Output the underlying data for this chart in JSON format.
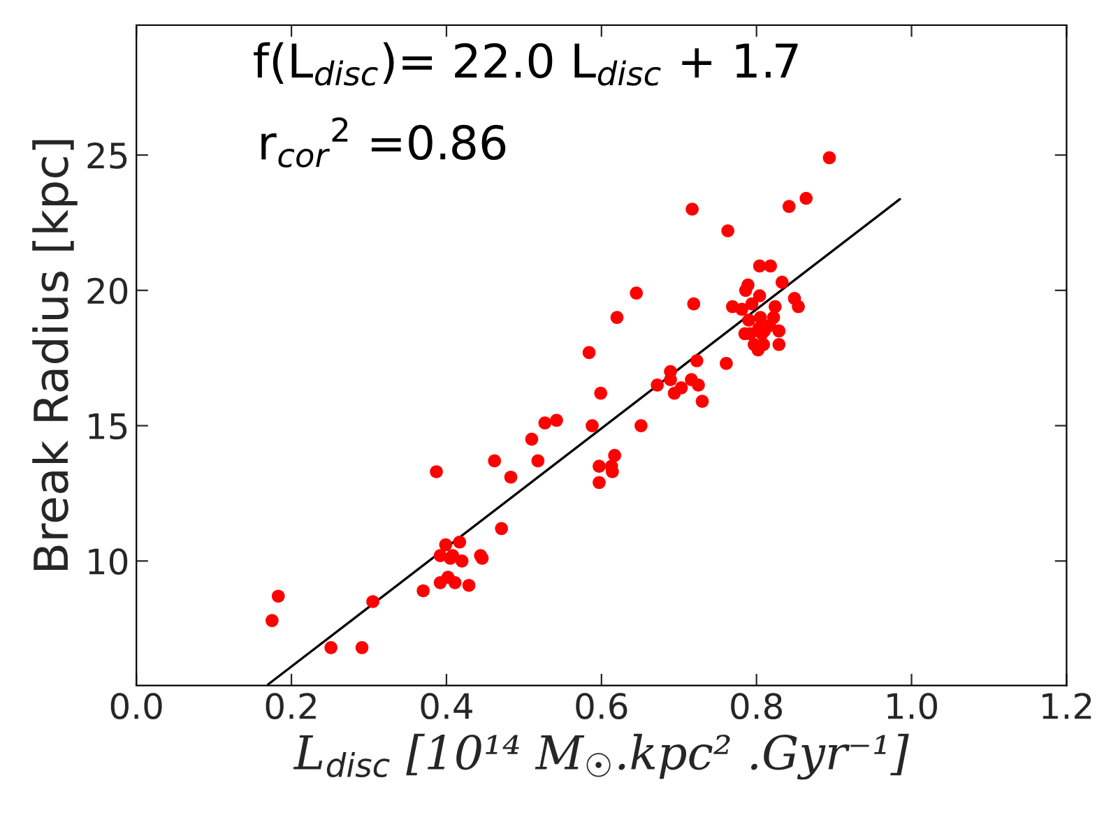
{
  "chart_data": {
    "type": "scatter",
    "xlabel": "L$_{disc}$ [10¹⁴ M$_{☉}$.kpc² .Gyr⁻¹]",
    "ylabel": "Break Radius [kpc]",
    "annotations": [
      "f(L$_{disc}$)= 22.0 L$_{disc}$ + 1.7",
      "r$_{cor}$$^{2}$ =0.86"
    ],
    "xlim": [
      0,
      1.2
    ],
    "ylim": [
      5.4,
      29.8
    ],
    "xticks": [
      {
        "value": 0,
        "label": "0.0"
      },
      {
        "value": 0.2,
        "label": "0.2"
      },
      {
        "value": 0.4,
        "label": "0.4"
      },
      {
        "value": 0.6,
        "label": "0.6"
      },
      {
        "value": 0.8,
        "label": "0.8"
      },
      {
        "value": 1.0,
        "label": "1.0"
      },
      {
        "value": 1.2,
        "label": "1.2"
      }
    ],
    "yticks": [
      10,
      15,
      20,
      25
    ],
    "grid": false,
    "legend": false,
    "marker": "circle",
    "series": [
      {
        "color": "#ff0000",
        "x": [
          0.175,
          0.183,
          0.251,
          0.291,
          0.305,
          0.387,
          0.37,
          0.392,
          0.402,
          0.411,
          0.429,
          0.392,
          0.399,
          0.405,
          0.408,
          0.417,
          0.42,
          0.444,
          0.446,
          0.471,
          0.462,
          0.483,
          0.518,
          0.51,
          0.527,
          0.542,
          0.645,
          0.62,
          0.584,
          0.719,
          0.599,
          0.588,
          0.651,
          0.597,
          0.613,
          0.614,
          0.617,
          0.597,
          0.672,
          0.689,
          0.689,
          0.703,
          0.694,
          0.716,
          0.725,
          0.723,
          0.73,
          0.761,
          0.804,
          0.818,
          0.786,
          0.789,
          0.833,
          0.804,
          0.769,
          0.781,
          0.794,
          0.824,
          0.849,
          0.854,
          0.79,
          0.805,
          0.822,
          0.785,
          0.792,
          0.803,
          0.81,
          0.817,
          0.807,
          0.829,
          0.829,
          0.797,
          0.809,
          0.802,
          0.717,
          0.763,
          0.842,
          0.864,
          0.894
        ],
        "values": [
          7.8,
          8.7,
          6.8,
          6.8,
          8.5,
          13.3,
          8.9,
          9.2,
          9.4,
          9.2,
          9.1,
          10.2,
          10.6,
          10.1,
          10.2,
          10.7,
          10.0,
          10.2,
          10.1,
          11.2,
          13.7,
          13.1,
          13.7,
          14.5,
          15.1,
          15.2,
          19.9,
          19.0,
          17.7,
          19.5,
          16.2,
          15.0,
          15.0,
          13.5,
          13.5,
          13.3,
          13.9,
          12.9,
          16.5,
          17.0,
          16.7,
          16.4,
          16.2,
          16.7,
          16.5,
          17.4,
          15.9,
          17.3,
          20.9,
          20.9,
          20.0,
          20.2,
          20.3,
          19.8,
          19.4,
          19.3,
          19.5,
          19.4,
          19.7,
          19.4,
          18.9,
          19.0,
          19.0,
          18.4,
          18.4,
          18.6,
          18.5,
          18.7,
          18.4,
          18.5,
          18.0,
          18.0,
          18.0,
          17.8,
          23.0,
          22.2,
          23.1,
          23.4,
          24.9
        ]
      },
      {
        "type": "line",
        "color": "#000000",
        "marker": "none",
        "line_style": "solid",
        "x": [
          0.17,
          0.985
        ],
        "values": [
          5.44,
          23.37
        ]
      }
    ]
  }
}
